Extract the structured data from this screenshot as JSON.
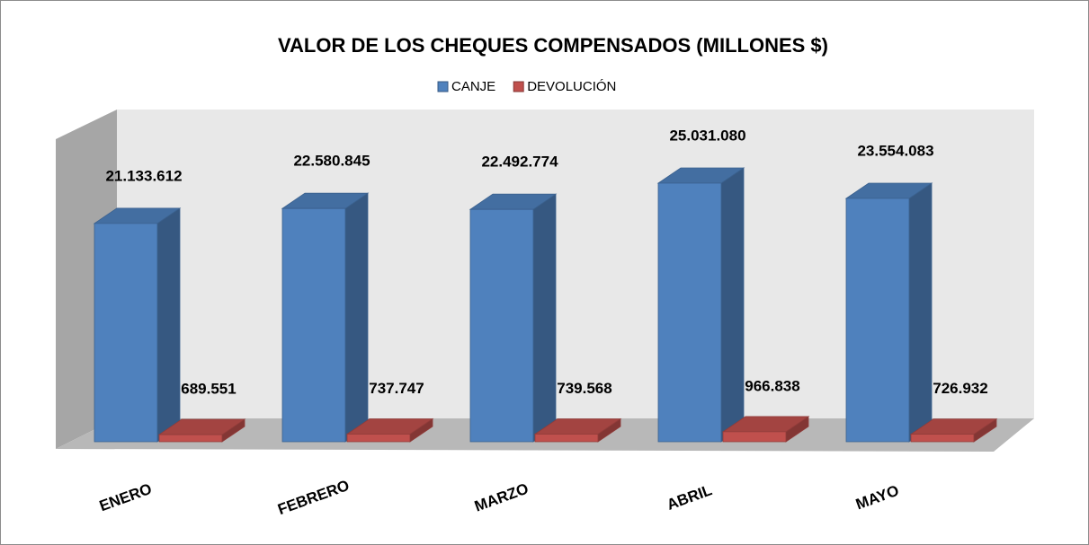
{
  "chart_data": {
    "type": "bar3d",
    "title": "VALOR DE LOS CHEQUES COMPENSADOS (MILLONES $)",
    "categories": [
      "ENERO",
      "FEBRERO",
      "MARZO",
      "ABRIL",
      "MAYO"
    ],
    "series": [
      {
        "name": "CANJE",
        "color": "#4f81bd",
        "values": [
          21133612,
          22580845,
          22492774,
          25031080,
          23554083
        ],
        "value_labels": [
          "21.133.612",
          "22.580.845",
          "22.492.774",
          "25.031.080",
          "23.554.083"
        ]
      },
      {
        "name": "DEVOLUCIÓN",
        "color": "#c0504d",
        "values": [
          689551,
          737747,
          739568,
          966838,
          726932
        ],
        "value_labels": [
          "689.551",
          "737.747",
          "739.568",
          "966.838",
          "726.932"
        ]
      }
    ],
    "legend": "top"
  }
}
